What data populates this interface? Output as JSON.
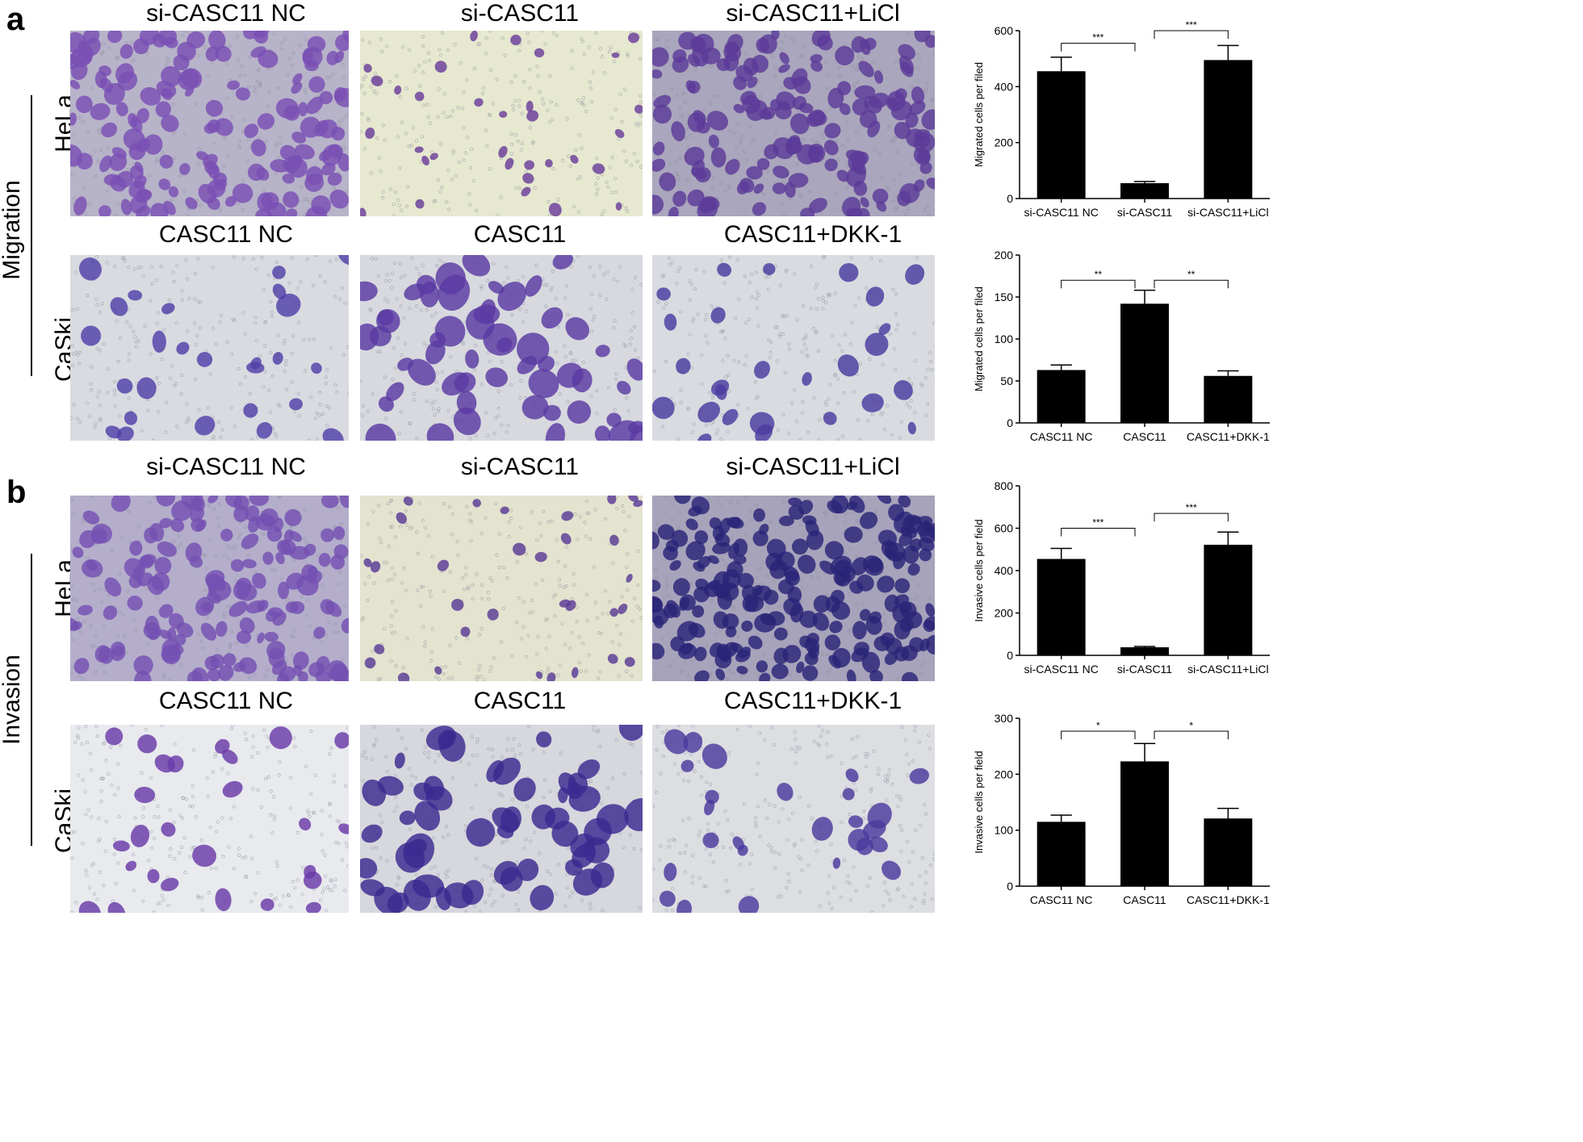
{
  "panels": [
    {
      "letter": "a",
      "group": "Migration"
    },
    {
      "letter": "b",
      "group": "Invasion"
    }
  ],
  "cell_lines": [
    "HeLa",
    "CaSki"
  ],
  "columns": {
    "hela": [
      "si-CASC11 NC",
      "si-CASC11",
      "si-CASC11+LiCl"
    ],
    "caski": [
      "CASC11 NC",
      "CASC11",
      "CASC11+DKK-1"
    ]
  },
  "micrographs": [
    {
      "name": "migration-hela-si-casc11-nc",
      "style": "hela-dense",
      "bg": "#b7b3c9",
      "cell": "#7a4fb5"
    },
    {
      "name": "migration-hela-si-casc11",
      "style": "hela-sparse",
      "bg": "#e6e8cf",
      "cell": "#6a3d9a"
    },
    {
      "name": "migration-hela-si-casc11-licl",
      "style": "hela-dense",
      "bg": "#aaa6bd",
      "cell": "#5b3a98"
    },
    {
      "name": "migration-caski-casc11-nc",
      "style": "caski-sparse",
      "bg": "#d9dbe0",
      "cell": "#5040a8"
    },
    {
      "name": "migration-caski-casc11",
      "style": "caski-dense",
      "bg": "#d7d9de",
      "cell": "#5a3aa3"
    },
    {
      "name": "migration-caski-casc11-dkk1",
      "style": "caski-sparse",
      "bg": "#d9dbe0",
      "cell": "#4a3aa0"
    },
    {
      "name": "invasion-hela-si-casc11-nc",
      "style": "hela-dense",
      "bg": "#b4aecb",
      "cell": "#7450b2"
    },
    {
      "name": "invasion-hela-si-casc11",
      "style": "hela-sparse",
      "bg": "#e3e3cf",
      "cell": "#5a3b95"
    },
    {
      "name": "invasion-hela-si-casc11-licl",
      "style": "hela-dark",
      "bg": "#a7a3bb",
      "cell": "#2b2478"
    },
    {
      "name": "invasion-caski-casc11-nc",
      "style": "caski-sparse",
      "bg": "#e8eaee",
      "cell": "#6a3aa8"
    },
    {
      "name": "invasion-caski-casc11",
      "style": "caski-dense",
      "bg": "#d6d8dd",
      "cell": "#3b2a90"
    },
    {
      "name": "invasion-caski-casc11-dkk1",
      "style": "caski-sparse",
      "bg": "#dcdee2",
      "cell": "#4a3a9e"
    }
  ],
  "chart_data": [
    {
      "type": "bar",
      "categories": [
        "si-CASC11 NC",
        "si-CASC11",
        "si-CASC11+LiCl"
      ],
      "values": [
        455,
        55,
        495
      ],
      "errors": [
        50,
        6,
        52
      ],
      "ylabel": "Migrated cells per filed",
      "ylim": [
        0,
        600
      ],
      "yticks": [
        "0",
        "200",
        "400",
        "600"
      ],
      "significance": [
        {
          "from": 0,
          "to": 1,
          "label": "***",
          "level": 555
        },
        {
          "from": 1,
          "to": 2,
          "label": "***",
          "level": 600
        }
      ]
    },
    {
      "type": "bar",
      "categories": [
        "CASC11 NC",
        "CASC11",
        "CASC11+DKK-1"
      ],
      "values": [
        63,
        142,
        56
      ],
      "errors": [
        6,
        16,
        6
      ],
      "ylabel": "Migrated cells per filed",
      "ylim": [
        0,
        200
      ],
      "yticks": [
        "0",
        "50",
        "100",
        "150",
        "200"
      ],
      "significance": [
        {
          "from": 0,
          "to": 1,
          "label": "**",
          "level": 170
        },
        {
          "from": 1,
          "to": 2,
          "label": "**",
          "level": 170
        }
      ]
    },
    {
      "type": "bar",
      "categories": [
        "si-CASC11 NC",
        "si-CASC11",
        "si-CASC11+LiCl"
      ],
      "values": [
        455,
        38,
        522
      ],
      "errors": [
        50,
        4,
        60
      ],
      "ylabel": "Invasive cells per field",
      "ylim": [
        0,
        800
      ],
      "yticks": [
        "0",
        "200",
        "400",
        "600",
        "800"
      ],
      "significance": [
        {
          "from": 0,
          "to": 1,
          "label": "***",
          "level": 600
        },
        {
          "from": 1,
          "to": 2,
          "label": "***",
          "level": 670
        }
      ]
    },
    {
      "type": "bar",
      "categories": [
        "CASC11 NC",
        "CASC11",
        "CASC11+DKK-1"
      ],
      "values": [
        115,
        223,
        121
      ],
      "errors": [
        12,
        32,
        18
      ],
      "ylabel": "Invasive cells per field",
      "ylim": [
        0,
        300
      ],
      "yticks": [
        "0",
        "100",
        "200",
        "300"
      ],
      "significance": [
        {
          "from": 0,
          "to": 1,
          "label": "*",
          "level": 277
        },
        {
          "from": 1,
          "to": 2,
          "label": "*",
          "level": 277
        }
      ]
    }
  ]
}
